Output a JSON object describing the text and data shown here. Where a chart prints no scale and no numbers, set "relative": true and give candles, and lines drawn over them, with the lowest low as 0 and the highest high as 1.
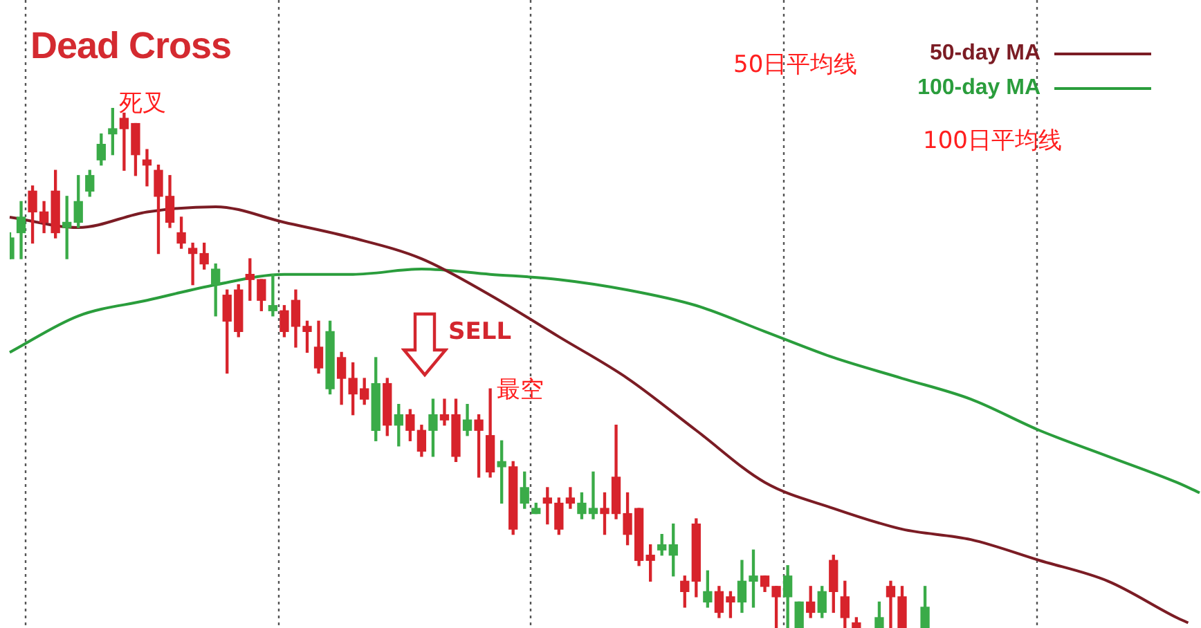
{
  "chart_data": {
    "type": "candlestick",
    "title": "Dead Cross",
    "relative": true,
    "legend": "top right",
    "marker": "none",
    "categories": [
      null,
      null,
      null,
      null,
      null,
      null,
      null,
      null,
      null,
      null,
      null,
      null,
      null,
      null,
      null,
      null,
      null,
      null,
      null,
      null,
      null,
      null,
      null,
      null,
      null,
      null,
      null,
      null,
      null,
      null,
      null,
      null,
      null,
      null,
      null,
      null,
      null,
      null,
      null,
      null,
      null,
      null,
      null,
      null,
      null,
      null,
      null,
      null,
      null,
      null,
      null,
      null,
      null,
      null,
      null,
      null,
      null,
      null,
      null,
      null,
      null,
      null,
      null,
      null,
      null,
      null,
      null,
      null,
      null,
      null,
      null,
      null,
      null,
      null,
      null,
      null,
      null,
      null,
      null,
      null,
      null,
      null,
      null,
      null,
      null,
      null,
      null,
      null,
      null,
      null,
      null,
      null,
      null,
      null,
      null,
      null,
      null,
      null,
      null,
      null,
      null,
      null,
      null,
      null,
      null
    ],
    "colors": [
      "#3aab48",
      "#3aab48",
      "#d7232b",
      "#d7232b",
      "#d7232b",
      "#3aab48",
      "#3aab48",
      "#3aab48",
      "#3aab48",
      "#3aab48",
      "#d7232b",
      "#d7232b",
      "#d7232b",
      "#d7232b",
      "#d7232b",
      "#d7232b",
      "#d7232b",
      "#d7232b",
      "#3aab48",
      "#d7232b",
      "#d7232b",
      "#d7232b",
      "#d7232b",
      "#3aab48",
      "#d7232b",
      "#d7232b",
      "#d7232b",
      "#d7232b",
      "#3aab48",
      "#d7232b",
      "#d7232b",
      "#d7232b",
      "#3aab48",
      "#d7232b",
      "#3aab48",
      "#d7232b",
      "#d7232b",
      "#3aab48",
      "#d7232b",
      "#d7232b",
      "#3aab48",
      "#d7232b",
      "#d7232b",
      "#3aab48",
      "#d7232b",
      "#3aab48",
      "#3aab48",
      "#d7232b",
      "#d7232b",
      "#d7232b",
      "#3aab48",
      "#3aab48",
      "#d7232b",
      "#d7232b",
      "#d7232b",
      "#d7232b",
      "#d7232b",
      "#3aab48",
      "#3aab48",
      "#d7232b",
      "#d7232b",
      "#3aab48",
      "#d7232b",
      "#d7232b",
      "#3aab48",
      "#3aab48",
      "#d7232b",
      "#d7232b",
      "#3aab48",
      "#3aab48",
      "#d7232b",
      "#3aab48",
      "#d7232b",
      "#d7232b",
      "#d7232b",
      null,
      "#3aab48",
      "#d7232b",
      "#d7232b",
      null,
      "#3aab48",
      null,
      null,
      null,
      null,
      null,
      null,
      null,
      null,
      null,
      null,
      null,
      null,
      null,
      null,
      null,
      null,
      null,
      null,
      null,
      null,
      null,
      null,
      null,
      null
    ],
    "ohlc": [
      [
        0.71,
        0.76,
        0.71,
        0.75
      ],
      [
        0.76,
        0.82,
        0.71,
        0.79
      ],
      [
        0.84,
        0.85,
        0.74,
        0.8
      ],
      [
        0.8,
        0.82,
        0.76,
        0.78
      ],
      [
        0.84,
        0.88,
        0.75,
        0.76
      ],
      [
        0.77,
        0.83,
        0.71,
        0.78
      ],
      [
        0.78,
        0.87,
        0.77,
        0.82
      ],
      [
        0.84,
        0.88,
        0.83,
        0.87
      ],
      [
        0.9,
        0.95,
        0.89,
        0.93
      ],
      [
        0.95,
        1,
        0.91,
        0.96
      ],
      [
        0.98,
        0.99,
        0.88,
        0.96
      ],
      [
        0.97,
        0.97,
        0.87,
        0.91
      ],
      [
        0.9,
        0.92,
        0.85,
        0.89
      ],
      [
        0.88,
        0.89,
        0.72,
        0.83
      ],
      [
        0.83,
        0.87,
        0.77,
        0.78
      ],
      [
        0.76,
        0.79,
        0.73,
        0.74
      ],
      [
        0.73,
        0.74,
        0.66,
        0.72
      ],
      [
        0.72,
        0.74,
        0.69,
        0.7
      ],
      [
        0.66,
        0.7,
        0.6,
        0.69
      ],
      [
        0.64,
        0.65,
        0.49,
        0.59
      ],
      [
        0.65,
        0.66,
        0.56,
        0.57
      ],
      [
        0.68,
        0.71,
        0.63,
        0.67
      ],
      [
        0.67,
        0.67,
        0.61,
        0.63
      ],
      [
        0.61,
        0.68,
        0.6,
        0.62
      ],
      [
        0.61,
        0.62,
        0.56,
        0.57
      ],
      [
        0.63,
        0.65,
        0.54,
        0.58
      ],
      [
        0.58,
        0.59,
        0.53,
        0.57
      ],
      [
        0.54,
        0.59,
        0.49,
        0.5
      ],
      [
        0.46,
        0.59,
        0.45,
        0.57
      ],
      [
        0.52,
        0.53,
        0.43,
        0.48
      ],
      [
        0.48,
        0.51,
        0.41,
        0.45
      ],
      [
        0.46,
        0.48,
        0.43,
        0.44
      ],
      [
        0.38,
        0.52,
        0.36,
        0.47
      ],
      [
        0.47,
        0.48,
        0.37,
        0.39
      ],
      [
        0.39,
        0.43,
        0.35,
        0.41
      ],
      [
        0.41,
        0.42,
        0.36,
        0.38
      ],
      [
        0.38,
        0.39,
        0.33,
        0.34
      ],
      [
        0.38,
        0.44,
        0.33,
        0.41
      ],
      [
        0.41,
        0.44,
        0.39,
        0.4
      ],
      [
        0.41,
        0.44,
        0.32,
        0.33
      ],
      [
        0.38,
        0.43,
        0.37,
        0.4
      ],
      [
        0.4,
        0.41,
        0.29,
        0.38
      ],
      [
        0.37,
        0.46,
        0.29,
        0.3
      ],
      [
        0.31,
        0.36,
        0.24,
        0.32
      ],
      [
        0.31,
        0.32,
        0.18,
        0.19
      ],
      [
        0.24,
        0.3,
        0.23,
        0.27
      ],
      [
        0.22,
        0.24,
        0.22,
        0.23
      ],
      [
        0.25,
        0.27,
        0.2,
        0.24
      ],
      [
        0.24,
        0.25,
        0.18,
        0.19
      ],
      [
        0.25,
        0.27,
        0.23,
        0.24
      ],
      [
        0.22,
        0.26,
        0.21,
        0.24
      ],
      [
        0.22,
        0.3,
        0.21,
        0.23
      ],
      [
        0.23,
        0.26,
        0.18,
        0.22
      ],
      [
        0.29,
        0.39,
        0.21,
        0.22
      ],
      [
        0.22,
        0.26,
        0.16,
        0.18
      ],
      [
        0.23,
        0.23,
        0.12,
        0.13
      ],
      [
        0.14,
        0.16,
        0.09,
        0.13
      ],
      [
        0.15,
        0.18,
        0.14,
        0.16
      ],
      [
        0.14,
        0.2,
        0.1,
        0.16
      ],
      [
        0.09,
        0.1,
        0.04,
        0.07
      ],
      [
        0.2,
        0.21,
        0.06,
        0.09
      ],
      [
        0.05,
        0.11,
        0.04,
        0.07
      ],
      [
        0.07,
        0.08,
        0.02,
        0.03
      ],
      [
        0.06,
        0.07,
        0.02,
        0.05
      ],
      [
        0.05,
        0.13,
        0.03,
        0.09
      ],
      [
        0.09,
        0.15,
        0.04,
        0.1
      ],
      [
        0.1,
        0.1,
        0.07,
        0.08
      ],
      [
        0.08,
        0.08,
        0,
        0.06
      ],
      [
        0.06,
        0.12,
        0,
        0.1
      ],
      [
        0,
        0.05,
        0,
        0.05
      ],
      [
        0.05,
        0.08,
        0.02,
        0.03
      ],
      [
        0.03,
        0.08,
        0.02,
        0.07
      ],
      [
        0.13,
        0.14,
        0.03,
        0.07
      ],
      [
        0.06,
        0.09,
        0,
        0.02
      ],
      [
        0.01,
        0.02,
        0,
        0
      ],
      null,
      [
        0,
        0.05,
        0,
        0.02
      ],
      [
        0.08,
        0.09,
        0,
        0.06
      ],
      [
        0.06,
        0.08,
        0,
        0
      ],
      null,
      [
        0,
        0.08,
        0,
        0.04
      ],
      null,
      null,
      null,
      null,
      null,
      null,
      null,
      null,
      null,
      null,
      null,
      null,
      null,
      null,
      null,
      null,
      null,
      null,
      null,
      null,
      null,
      null,
      null,
      null
    ],
    "series": [
      {
        "name": "50-day MA",
        "type": "line",
        "color": "#7b1c24",
        "values": [
          0.79,
          null,
          null,
          null,
          null,
          null,
          0.77,
          null,
          null,
          null,
          null,
          null,
          0.8,
          null,
          null,
          null,
          null,
          null,
          0.81,
          null,
          null,
          null,
          null,
          null,
          0.78,
          null,
          null,
          null,
          null,
          null,
          0.75,
          null,
          null,
          null,
          null,
          null,
          0.71,
          null,
          null,
          null,
          null,
          null,
          0.64,
          null,
          null,
          null,
          null,
          null,
          0.56,
          null,
          null,
          null,
          null,
          null,
          0.48,
          null,
          null,
          null,
          null,
          null,
          0.38,
          null,
          null,
          null,
          null,
          null,
          0.28,
          null,
          null,
          null,
          null,
          null,
          0.23,
          null,
          null,
          null,
          null,
          null,
          0.19,
          null,
          null,
          null,
          null,
          null,
          0.17,
          null,
          null,
          null,
          null,
          null,
          0.13,
          null,
          null,
          null,
          null,
          null,
          0.09,
          null,
          null,
          null,
          null,
          null,
          0.02,
          0.01,
          null
        ]
      },
      {
        "name": "100-day MA",
        "type": "line",
        "color": "#2a9d3c",
        "values": [
          0.53,
          null,
          null,
          null,
          null,
          null,
          0.6,
          null,
          null,
          null,
          null,
          null,
          0.63,
          null,
          null,
          null,
          null,
          null,
          0.66,
          null,
          null,
          null,
          null,
          null,
          0.68,
          null,
          null,
          null,
          null,
          null,
          0.68,
          null,
          null,
          null,
          null,
          null,
          0.69,
          null,
          null,
          null,
          null,
          null,
          0.68,
          null,
          null,
          null,
          null,
          null,
          0.67,
          null,
          null,
          null,
          null,
          null,
          0.65,
          null,
          null,
          null,
          null,
          null,
          0.62,
          null,
          null,
          null,
          null,
          null,
          0.57,
          null,
          null,
          null,
          null,
          null,
          0.52,
          null,
          null,
          null,
          null,
          null,
          0.48,
          null,
          null,
          null,
          null,
          null,
          0.44,
          null,
          null,
          null,
          null,
          null,
          0.38,
          null,
          null,
          null,
          null,
          null,
          0.33,
          null,
          null,
          null,
          null,
          null,
          0.28,
          null,
          0.26
        ]
      }
    ],
    "annotations": [
      "死叉",
      "SELL",
      "最空",
      "50日平均线",
      "100日平均线"
    ]
  }
}
